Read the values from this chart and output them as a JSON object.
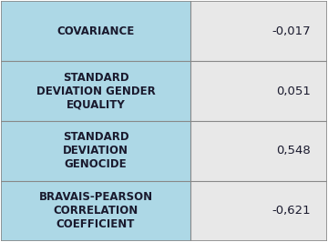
{
  "rows": [
    {
      "label": "COVARIANCE",
      "value": "-0,017"
    },
    {
      "label": "STANDARD\nDEVIATION GENDER\nEQUALITY",
      "value": "0,051"
    },
    {
      "label": "STANDARD\nDEVIATION\nGENOCIDE",
      "value": "0,548"
    },
    {
      "label": "BRAVAIS-PEARSON\nCORRELATION\nCOEFFICIENT",
      "value": "-0,621"
    }
  ],
  "left_bg_color": "#ADD8E6",
  "right_bg_color": "#E8E8E8",
  "border_color": "#888888",
  "label_font_color": "#1a1a2e",
  "value_font_color": "#1a1a2e",
  "label_fontsize": 8.5,
  "value_fontsize": 9.5,
  "fig_bg_color": "#ffffff",
  "col_split": 0.58
}
